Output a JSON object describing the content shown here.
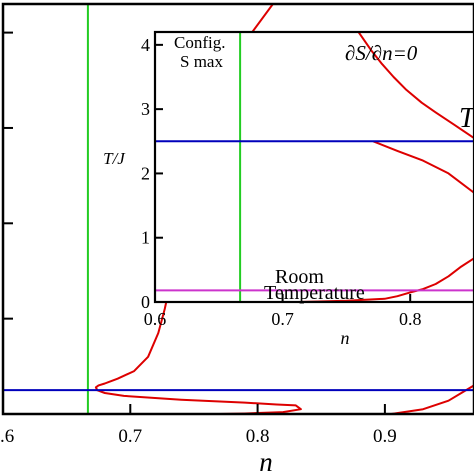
{
  "chart_data": [
    {
      "id": "main",
      "type": "line",
      "xlabel": "n",
      "ylabel": "",
      "xlim": [
        0.6,
        0.97
      ],
      "ylim": [
        0,
        4.3
      ],
      "x_ticks": [
        {
          "value": 0.6,
          "label": ".6"
        },
        {
          "value": 0.7,
          "label": "0.7"
        },
        {
          "value": 0.8,
          "label": "0.8"
        },
        {
          "value": 0.9,
          "label": "0.9"
        }
      ],
      "y_ticks": [
        0,
        1,
        2,
        3,
        4
      ],
      "grid": false,
      "series": [
        {
          "color": "#dd0000",
          "points": [
            [
              0.812,
              4.3
            ],
            [
              0.79,
              3.9
            ],
            [
              0.78,
              3.55
            ],
            [
              0.77,
              3.25
            ],
            [
              0.762,
              2.9
            ],
            [
              0.755,
              2.6
            ],
            [
              0.748,
              2.3
            ],
            [
              0.742,
              2.0
            ],
            [
              0.737,
              1.7
            ],
            [
              0.732,
              1.4
            ],
            [
              0.727,
              1.1
            ],
            [
              0.722,
              0.85
            ],
            [
              0.714,
              0.6
            ],
            [
              0.703,
              0.45
            ],
            [
              0.69,
              0.37
            ],
            [
              0.68,
              0.32
            ],
            [
              0.675,
              0.3
            ],
            [
              0.673,
              0.28
            ],
            [
              0.674,
              0.25
            ],
            [
              0.68,
              0.22
            ],
            [
              0.695,
              0.19
            ],
            [
              0.74,
              0.15
            ],
            [
              0.79,
              0.12
            ],
            [
              0.815,
              0.1
            ],
            [
              0.83,
              0.09
            ],
            [
              0.834,
              0.05
            ],
            [
              0.82,
              0.02
            ],
            [
              0.79,
              0.005
            ],
            [
              0.77,
              0.0
            ]
          ]
        },
        {
          "color": "#dd0000",
          "points": [
            [
              0.905,
              0.0
            ],
            [
              0.93,
              0.05
            ],
            [
              0.95,
              0.14
            ],
            [
              0.97,
              0.3
            ]
          ]
        }
      ],
      "reference_lines": [
        {
          "orientation": "vertical",
          "value": 0.6667,
          "color": "#22cc22"
        },
        {
          "orientation": "horizontal",
          "value": 0.25,
          "color": "#0000bb"
        }
      ]
    },
    {
      "id": "inset",
      "type": "line",
      "xlabel": "n",
      "ylabel": "T/J",
      "xlim": [
        0.6,
        0.85
      ],
      "ylim": [
        0,
        4.2
      ],
      "x_ticks": [
        {
          "value": 0.6,
          "label": "0.6"
        },
        {
          "value": 0.7,
          "label": "0.7"
        },
        {
          "value": 0.8,
          "label": "0.8"
        }
      ],
      "y_ticks": [
        0,
        1,
        2,
        3,
        4
      ],
      "grid": false,
      "series": [
        {
          "color": "#dd0000",
          "points": [
            [
              0.712,
              0.0
            ],
            [
              0.75,
              0.02
            ],
            [
              0.78,
              0.05
            ],
            [
              0.79,
              0.09
            ],
            [
              0.8,
              0.15
            ],
            [
              0.81,
              0.2
            ],
            [
              0.82,
              0.28
            ],
            [
              0.83,
              0.4
            ],
            [
              0.84,
              0.55
            ],
            [
              0.85,
              0.68
            ]
          ]
        },
        {
          "color": "#dd0000",
          "points": [
            [
              0.7595,
              4.2
            ],
            [
              0.77,
              3.9
            ],
            [
              0.778,
              3.7
            ],
            [
              0.787,
              3.5
            ],
            [
              0.797,
              3.3
            ],
            [
              0.809,
              3.1
            ],
            [
              0.82,
              2.95
            ],
            [
              0.835,
              2.75
            ],
            [
              0.85,
              2.55
            ]
          ]
        },
        {
          "color": "#dd0000",
          "points": [
            [
              0.771,
              2.5
            ],
            [
              0.79,
              2.35
            ],
            [
              0.81,
              2.2
            ],
            [
              0.83,
              2.0
            ],
            [
              0.85,
              1.7
            ]
          ]
        }
      ],
      "reference_lines": [
        {
          "orientation": "vertical",
          "value": 0.6667,
          "color": "#22cc22"
        },
        {
          "orientation": "horizontal",
          "value": 2.5,
          "color": "#0000bb"
        },
        {
          "orientation": "horizontal",
          "value": 0.18,
          "color": "#cc33cc"
        }
      ],
      "annotations": {
        "config_line1": "Config.",
        "config_line2": "S max",
        "dsdn": "∂S/∂n=0",
        "room_line1": "Room",
        "room_line2": "Temperature",
        "t_label": "T"
      }
    }
  ]
}
